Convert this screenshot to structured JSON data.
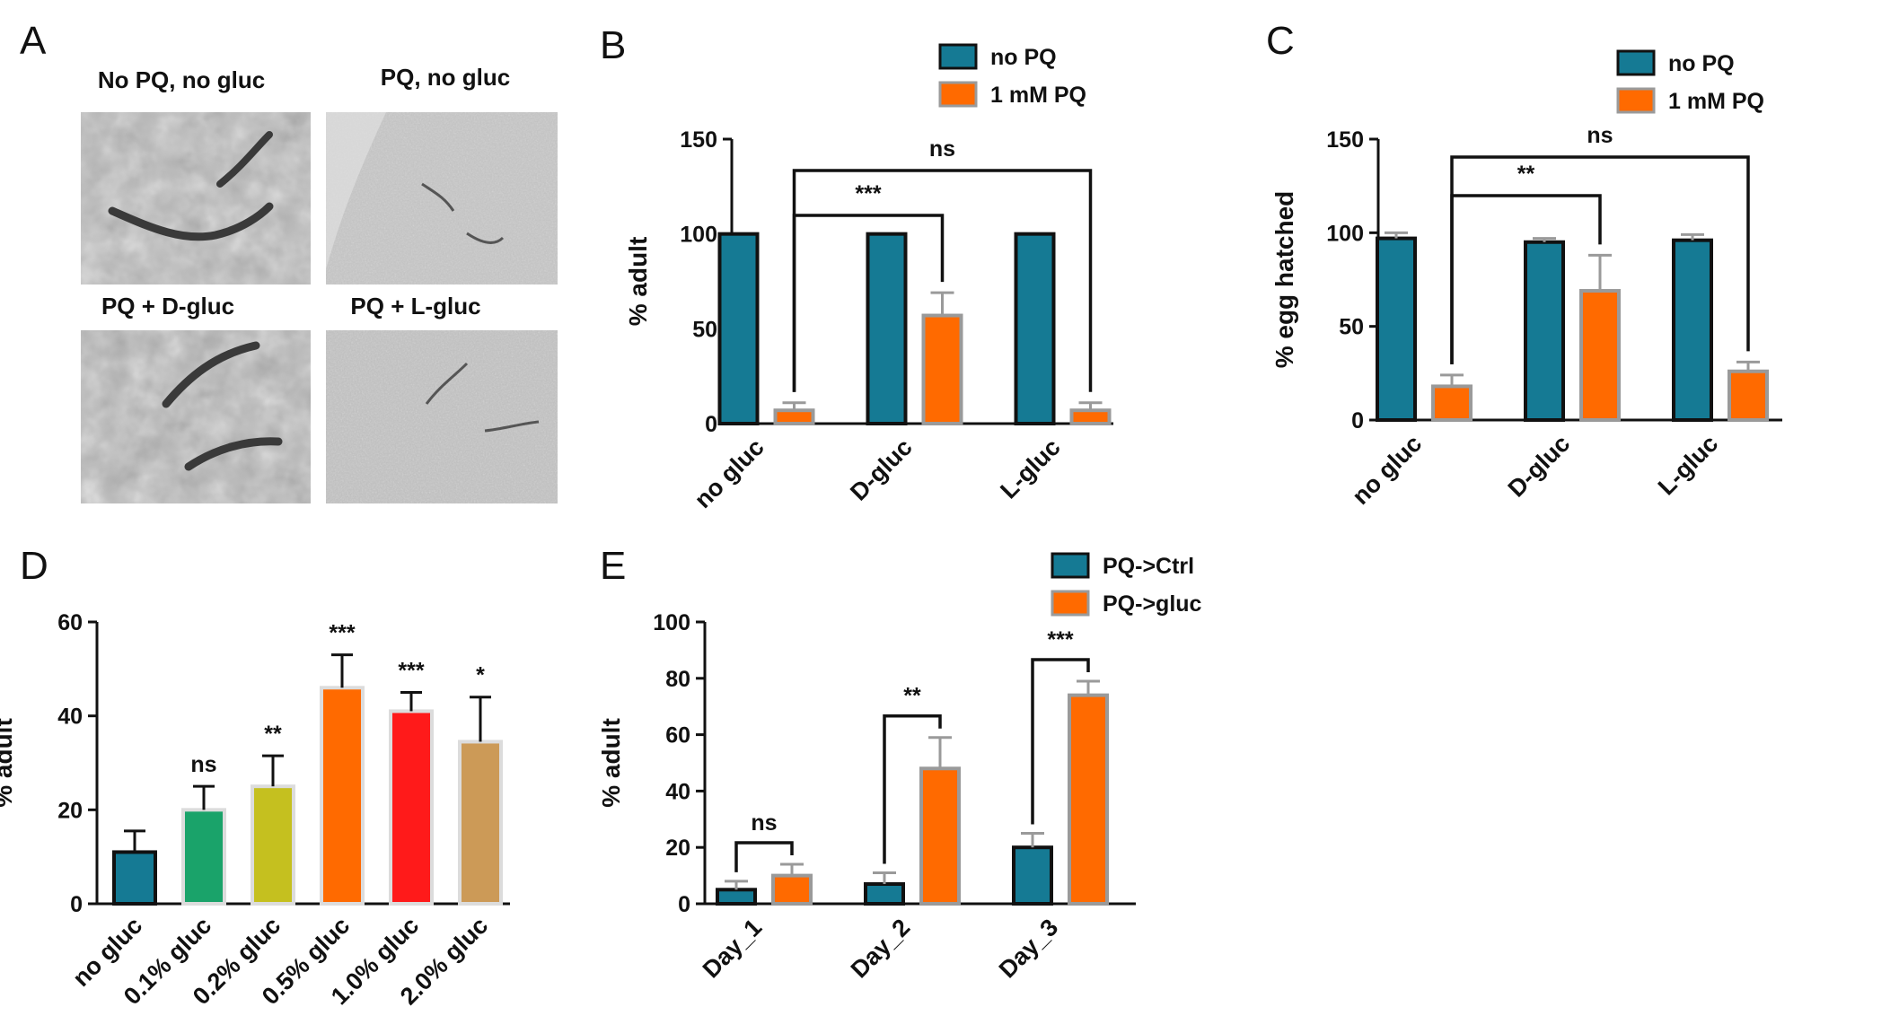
{
  "panel_labels": [
    "A",
    "B",
    "C",
    "D",
    "E"
  ],
  "panel_a": {
    "titles": [
      "No PQ, no gluc",
      "PQ, no gluc",
      "PQ + D-gluc",
      "PQ + L-gluc"
    ]
  },
  "colors": {
    "teal": "#157a94",
    "orange": "#ff6a00",
    "green": "#1aa36a",
    "olive": "#c5c01f",
    "red": "#ff1a1a",
    "tan": "#cc9a57",
    "edge_grey": "#9a9a9a"
  },
  "chart_data": [
    {
      "panel": "B",
      "type": "bar",
      "categories": [
        "no gluc",
        "D-gluc",
        "L-gluc"
      ],
      "series": [
        {
          "name": "no PQ",
          "color": "#157a94",
          "values": [
            100,
            100,
            100
          ],
          "errors": [
            0,
            0,
            0
          ]
        },
        {
          "name": "1 mM PQ",
          "color": "#ff6a00",
          "values": [
            7,
            57,
            7
          ],
          "errors": [
            4,
            12,
            4
          ]
        }
      ],
      "ylabel": "% adult",
      "yticks": [
        0,
        50,
        100,
        150
      ],
      "ylim": [
        0,
        150
      ],
      "legend": "top-right",
      "significance": [
        {
          "from": "no gluc",
          "to": "D-gluc",
          "label": "***"
        },
        {
          "from": "no gluc",
          "to": "L-gluc",
          "label": "ns"
        }
      ]
    },
    {
      "panel": "C",
      "type": "bar",
      "categories": [
        "no gluc",
        "D-gluc",
        "L-gluc"
      ],
      "series": [
        {
          "name": "no PQ",
          "color": "#157a94",
          "values": [
            97,
            95,
            96
          ],
          "errors": [
            3,
            2,
            3
          ]
        },
        {
          "name": "1 mM PQ",
          "color": "#ff6a00",
          "values": [
            18,
            69,
            26
          ],
          "errors": [
            6,
            19,
            5
          ]
        }
      ],
      "ylabel": "% egg hatched",
      "yticks": [
        0,
        50,
        100,
        150
      ],
      "ylim": [
        0,
        150
      ],
      "legend": "top-right",
      "significance": [
        {
          "from": "no gluc",
          "to": "D-gluc",
          "label": "**"
        },
        {
          "from": "no gluc",
          "to": "L-gluc",
          "label": "ns"
        }
      ]
    },
    {
      "panel": "D",
      "type": "bar",
      "categories": [
        "no gluc",
        "0.1% gluc",
        "0.2% gluc",
        "0.5% gluc",
        "1.0% gluc",
        "2.0% gluc"
      ],
      "values": [
        11,
        20,
        25,
        46,
        41,
        34.5
      ],
      "errors": [
        4.5,
        5,
        6.5,
        7,
        4,
        9.5
      ],
      "colors": [
        "#157a94",
        "#1aa36a",
        "#c5c01f",
        "#ff6a00",
        "#ff1a1a",
        "#cc9a57"
      ],
      "labels": [
        "",
        "ns",
        "**",
        "***",
        "***",
        "*"
      ],
      "ylabel": "% adult",
      "yticks": [
        0,
        20,
        40,
        60
      ],
      "ylim": [
        0,
        60
      ]
    },
    {
      "panel": "E",
      "type": "bar",
      "categories": [
        "Day_1",
        "Day_2",
        "Day_3"
      ],
      "series": [
        {
          "name": "PQ->Ctrl",
          "color": "#157a94",
          "values": [
            5,
            7,
            20
          ],
          "errors": [
            3,
            4,
            5
          ]
        },
        {
          "name": "PQ->gluc",
          "color": "#ff6a00",
          "values": [
            10,
            48,
            74
          ],
          "errors": [
            4,
            11,
            5
          ]
        }
      ],
      "ylabel": "% adult",
      "yticks": [
        0,
        20,
        40,
        60,
        80,
        100
      ],
      "ylim": [
        0,
        100
      ],
      "legend": "top-right",
      "significance": [
        {
          "category": "Day_1",
          "label": "ns"
        },
        {
          "category": "Day_2",
          "label": "**"
        },
        {
          "category": "Day_3",
          "label": "***"
        }
      ]
    }
  ]
}
